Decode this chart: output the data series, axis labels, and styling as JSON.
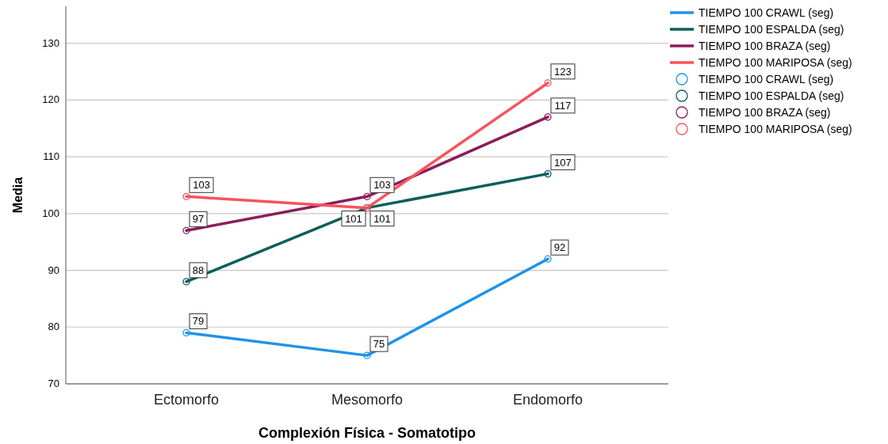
{
  "chart_data": {
    "type": "line",
    "xlabel": "Complexión Física - Somatotipo",
    "ylabel": "Media",
    "categories": [
      "Ectomorfo",
      "Mesomorfo",
      "Endomorfo"
    ],
    "series": [
      {
        "name": "TIEMPO 100 CRAWL (seg)",
        "color": "#1f93e8",
        "values": [
          79,
          75,
          92
        ]
      },
      {
        "name": "TIEMPO 100 ESPALDA (seg)",
        "color": "#0a5e5b",
        "values": [
          88,
          101,
          107
        ]
      },
      {
        "name": "TIEMPO 100 BRAZA (seg)",
        "color": "#8c1d5c",
        "values": [
          97,
          103,
          117
        ]
      },
      {
        "name": "TIEMPO 100 MARIPOSA (seg)",
        "color": "#f8525c",
        "values": [
          103,
          101,
          123
        ]
      }
    ],
    "ylim": [
      70,
      136.5
    ],
    "yticks": [
      70,
      80,
      90,
      100,
      110,
      120,
      130
    ],
    "grid": "y",
    "legend": "right",
    "marker": "circle",
    "line_style": "solid",
    "data_labels": true
  }
}
